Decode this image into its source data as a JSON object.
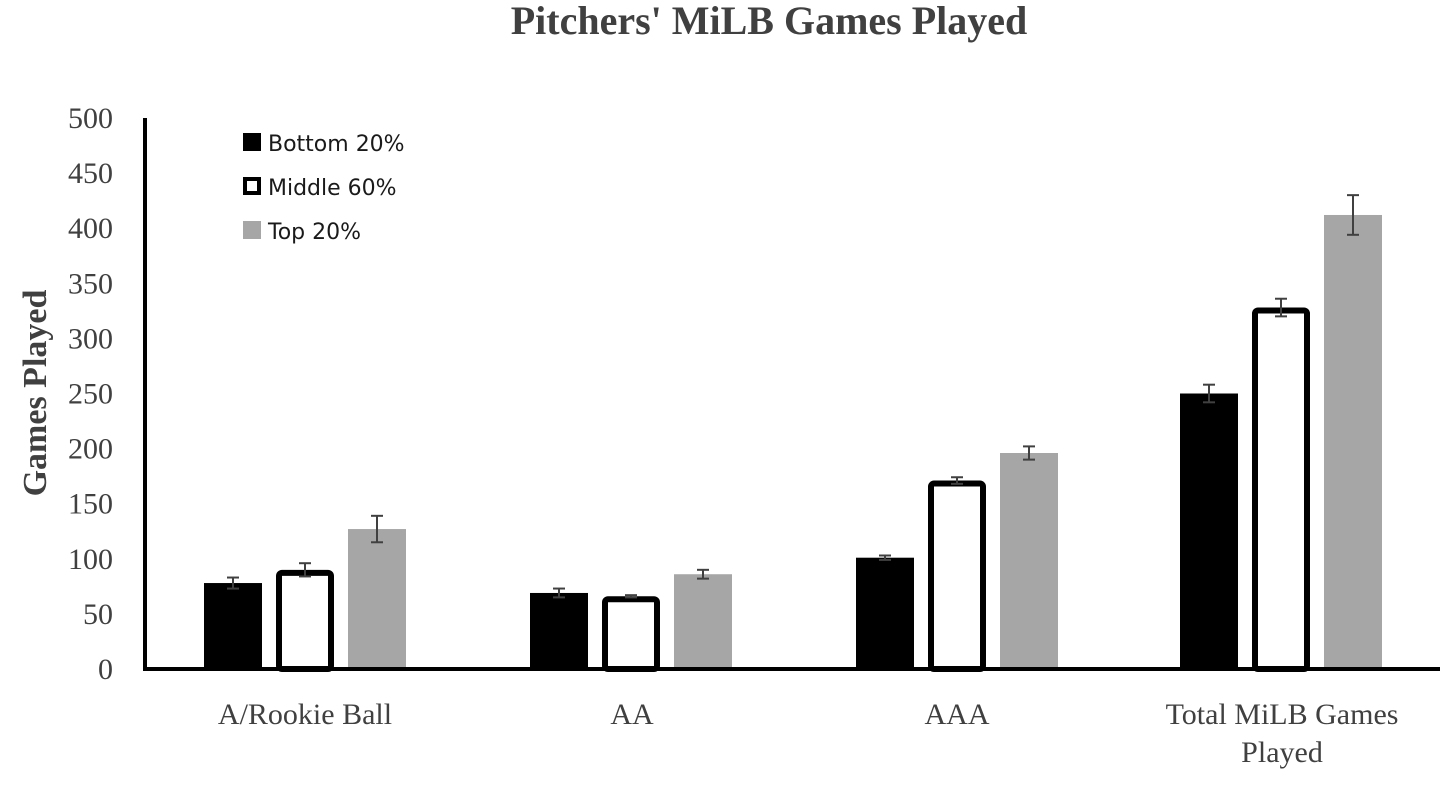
{
  "chart_data": {
    "type": "bar",
    "title": "Pitchers' MiLB Games Played",
    "xlabel": "",
    "ylabel": "Games Played",
    "ylim": [
      0,
      500
    ],
    "yticks": [
      0,
      50,
      100,
      150,
      200,
      250,
      300,
      350,
      400,
      450,
      500
    ],
    "categories": [
      "A/Rookie Ball",
      "AA",
      "AAA",
      "Total MiLB Games Played"
    ],
    "category_lines": [
      [
        "A/Rookie Ball"
      ],
      [
        "AA"
      ],
      [
        "AAA"
      ],
      [
        "Total MiLB Games",
        "Played"
      ]
    ],
    "grid": false,
    "legend_position": "top-left",
    "series": [
      {
        "name": "Bottom 20%",
        "fill": "#000000",
        "stroke": "#000000",
        "values": [
          78,
          69,
          101,
          250
        ],
        "errors": [
          5,
          4,
          2,
          8
        ]
      },
      {
        "name": "Middle 60%",
        "fill": "#ffffff",
        "stroke": "#000000",
        "values": [
          90,
          66,
          171,
          328
        ],
        "errors": [
          6,
          1,
          3,
          8
        ]
      },
      {
        "name": "Top 20%",
        "fill": "#a6a6a6",
        "stroke": "#a6a6a6",
        "values": [
          127,
          86,
          196,
          412
        ],
        "errors": [
          12,
          4,
          6,
          18
        ]
      }
    ],
    "colors": {
      "axis": "#000000",
      "text": "#404040",
      "error_bar": "#404040"
    }
  }
}
